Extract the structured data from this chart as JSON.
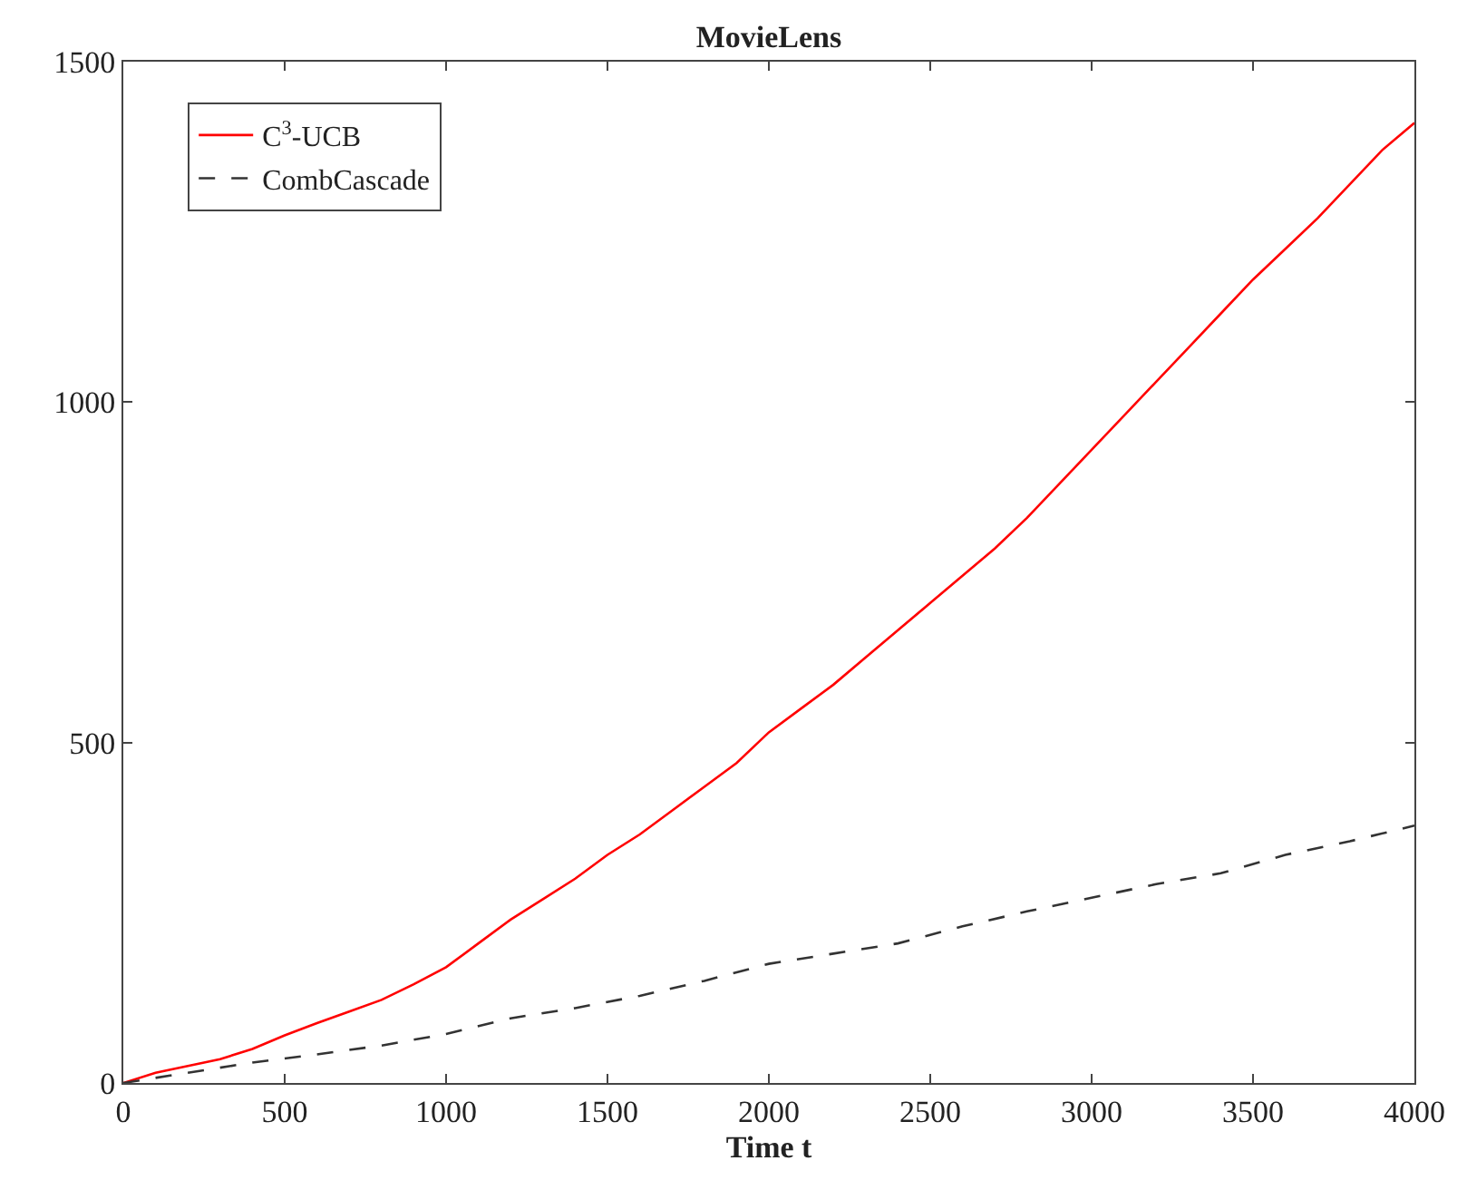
{
  "chart_data": {
    "type": "line",
    "title": "MovieLens",
    "xlabel": "Time t",
    "xlim": [
      0,
      4000
    ],
    "xticks": [
      0,
      500,
      1000,
      1500,
      2000,
      2500,
      3000,
      3500,
      4000
    ],
    "ylim": [
      0,
      1500
    ],
    "yticks": [
      0,
      500,
      1000,
      1500
    ],
    "legend": "top left",
    "marker": "none",
    "series": [
      {
        "name": "C$^{3}$-UCB",
        "color": "#ff0000",
        "line_style": "solid",
        "x": [
          0,
          100,
          200,
          300,
          400,
          500,
          600,
          700,
          800,
          900,
          1000,
          1100,
          1200,
          1300,
          1400,
          1500,
          1600,
          1700,
          1800,
          1900,
          2000,
          2100,
          2200,
          2300,
          2400,
          2500,
          2600,
          2700,
          2800,
          2900,
          3000,
          3100,
          3200,
          3300,
          3400,
          3500,
          3600,
          3700,
          3800,
          3900,
          4000
        ],
        "values": [
          0,
          15,
          25,
          35,
          50,
          70,
          88,
          105,
          122,
          145,
          170,
          205,
          240,
          270,
          300,
          335,
          365,
          400,
          435,
          470,
          515,
          550,
          585,
          625,
          665,
          705,
          745,
          785,
          830,
          880,
          930,
          980,
          1030,
          1080,
          1130,
          1180,
          1225,
          1270,
          1320,
          1370,
          1410
        ]
      },
      {
        "name": "CombCascade",
        "color": "#333333",
        "line_style": "dashed",
        "x": [
          0,
          200,
          400,
          600,
          800,
          1000,
          1200,
          1400,
          1600,
          1800,
          2000,
          2200,
          2400,
          2600,
          2800,
          3000,
          3200,
          3400,
          3600,
          3800,
          4000
        ],
        "values": [
          0,
          15,
          30,
          42,
          55,
          72,
          95,
          110,
          128,
          150,
          175,
          190,
          205,
          230,
          252,
          272,
          292,
          308,
          335,
          355,
          378
        ]
      }
    ]
  }
}
